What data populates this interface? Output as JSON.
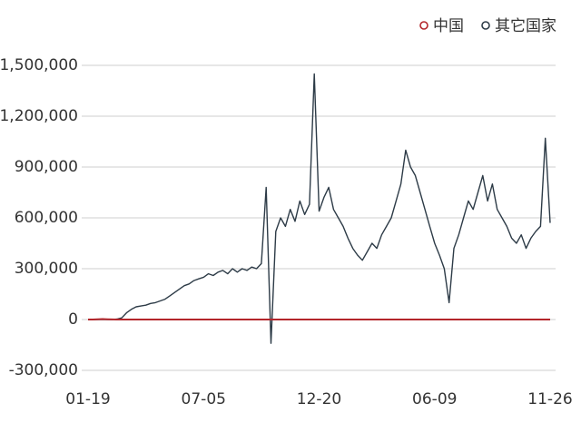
{
  "chart_data": {
    "type": "line",
    "categories": [
      "01-19",
      null,
      null,
      null,
      null,
      null,
      null,
      null,
      null,
      null,
      null,
      null,
      null,
      null,
      null,
      null,
      null,
      null,
      null,
      null,
      null,
      null,
      null,
      null,
      "07-05",
      null,
      null,
      null,
      null,
      null,
      null,
      null,
      null,
      null,
      null,
      null,
      null,
      null,
      null,
      null,
      null,
      null,
      null,
      null,
      null,
      null,
      null,
      null,
      "12-20",
      null,
      null,
      null,
      null,
      null,
      null,
      null,
      null,
      null,
      null,
      null,
      null,
      null,
      null,
      null,
      null,
      null,
      null,
      null,
      null,
      null,
      null,
      null,
      "06-09",
      null,
      null,
      null,
      null,
      null,
      null,
      null,
      null,
      null,
      null,
      null,
      null,
      null,
      null,
      null,
      null,
      null,
      null,
      null,
      null,
      null,
      null,
      null,
      "11-26"
    ],
    "series": [
      {
        "name": "中国",
        "color": "#b3262b",
        "values": [
          0,
          0,
          2000,
          3000,
          2000,
          500,
          0,
          0,
          0,
          0,
          0,
          0,
          0,
          0,
          0,
          0,
          0,
          0,
          0,
          0,
          0,
          0,
          0,
          0,
          0,
          0,
          0,
          0,
          0,
          0,
          0,
          0,
          0,
          0,
          0,
          0,
          0,
          0,
          0,
          0,
          0,
          0,
          0,
          0,
          0,
          0,
          0,
          0,
          0,
          0,
          0,
          0,
          0,
          0,
          0,
          0,
          0,
          0,
          0,
          0,
          0,
          0,
          0,
          0,
          0,
          0,
          0,
          0,
          0,
          0,
          0,
          0,
          0,
          0,
          0,
          0,
          0,
          0,
          0,
          0,
          0,
          0,
          0,
          0,
          0,
          0,
          0,
          0,
          0,
          0,
          0,
          0,
          0,
          0,
          0,
          0,
          0
        ]
      },
      {
        "name": "其它国家",
        "color": "#2d3b47",
        "values": [
          0,
          0,
          0,
          0,
          0,
          0,
          3000,
          10000,
          40000,
          60000,
          75000,
          80000,
          85000,
          95000,
          100000,
          110000,
          120000,
          140000,
          160000,
          180000,
          200000,
          210000,
          230000,
          240000,
          250000,
          270000,
          260000,
          280000,
          290000,
          270000,
          300000,
          280000,
          300000,
          290000,
          310000,
          300000,
          330000,
          780000,
          -140000,
          520000,
          600000,
          550000,
          650000,
          580000,
          700000,
          620000,
          680000,
          1450000,
          640000,
          720000,
          780000,
          650000,
          600000,
          550000,
          480000,
          420000,
          380000,
          350000,
          400000,
          450000,
          420000,
          500000,
          550000,
          600000,
          700000,
          800000,
          1000000,
          900000,
          850000,
          750000,
          650000,
          550000,
          450000,
          380000,
          300000,
          100000,
          420000,
          500000,
          600000,
          700000,
          650000,
          750000,
          850000,
          700000,
          800000,
          650000,
          600000,
          550000,
          480000,
          450000,
          500000,
          420000,
          480000,
          520000,
          550000,
          1070000,
          570000
        ]
      }
    ],
    "ylim": [
      -400000,
      1700000
    ],
    "yticks": [
      {
        "value": -300000,
        "label": "-300,000"
      },
      0,
      {
        "value": 300000,
        "label": "300,000"
      },
      {
        "value": 600000,
        "label": "600,000"
      },
      {
        "value": 900000,
        "label": "900,000"
      },
      {
        "value": 1200000,
        "label": "1,200,000"
      },
      {
        "value": 1500000,
        "label": "1,500,000"
      }
    ],
    "grid": true,
    "legend": "top-right"
  }
}
